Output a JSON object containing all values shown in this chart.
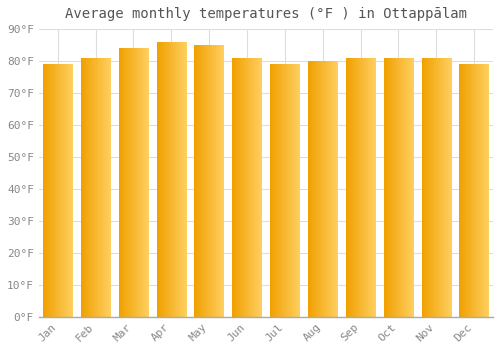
{
  "title": "Average monthly temperatures (°F ) in Ottappālam",
  "months": [
    "Jan",
    "Feb",
    "Mar",
    "Apr",
    "May",
    "Jun",
    "Jul",
    "Aug",
    "Sep",
    "Oct",
    "Nov",
    "Dec"
  ],
  "values": [
    79,
    81,
    84,
    86,
    85,
    81,
    79,
    80,
    81,
    81,
    81,
    79
  ],
  "bar_color_left": "#F0A000",
  "bar_color_right": "#FFD060",
  "background_color": "#FFFFFF",
  "grid_color": "#DDDDDD",
  "text_color": "#888888",
  "title_color": "#555555",
  "ylim": [
    0,
    90
  ],
  "yticks": [
    0,
    10,
    20,
    30,
    40,
    50,
    60,
    70,
    80,
    90
  ],
  "title_fontsize": 10,
  "tick_fontsize": 8,
  "bar_width": 0.78
}
